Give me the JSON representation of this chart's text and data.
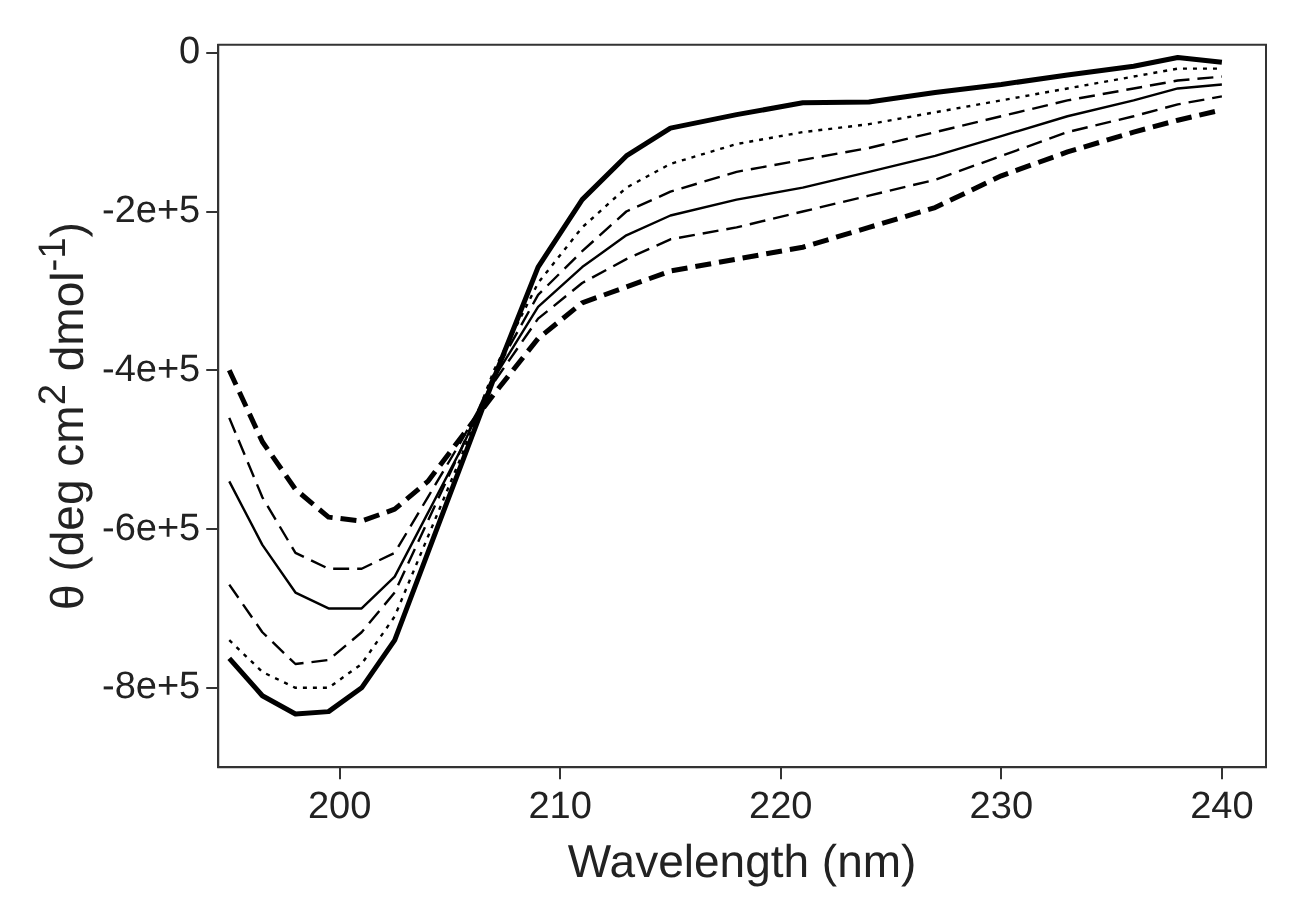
{
  "chart_data": {
    "type": "line",
    "xlabel": "Wavelength (nm)",
    "ylabel": "θ (deg cm$^{2}$ dmol$^{-1}$)",
    "x": [
      195,
      196.5,
      198,
      199.5,
      201,
      202.5,
      204,
      205.5,
      207,
      209,
      211,
      213,
      215,
      218,
      221,
      224,
      227,
      230,
      233,
      236,
      238,
      240
    ],
    "xlim": [
      194.5,
      242
    ],
    "xticks": [
      200,
      210,
      220,
      230,
      240
    ],
    "ylim": [
      -900000,
      10000
    ],
    "yticks": [
      {
        "value": -800000,
        "label": "-8e+5"
      },
      {
        "value": -600000,
        "label": "-6e+5"
      },
      {
        "value": -400000,
        "label": "-4e+5"
      },
      {
        "value": -200000,
        "label": "-2e+5"
      },
      0
    ],
    "marker": "none",
    "legend": false,
    "series": [
      {
        "color": "#000000",
        "line_style": "solid",
        "values": [
          -763000,
          -810000,
          -833000,
          -830000,
          -800000,
          -740000,
          -630000,
          -520000,
          -410000,
          -270000,
          -185000,
          -130000,
          -95000,
          -78000,
          -63000,
          -62000,
          -50000,
          -40000,
          -28000,
          -17000,
          -6000,
          -12000
        ]
      },
      {
        "color": "#000000",
        "line_style": "dotted",
        "values": [
          -740000,
          -780000,
          -800000,
          -800000,
          -770000,
          -710000,
          -610000,
          -510000,
          -400000,
          -290000,
          -220000,
          -170000,
          -140000,
          -115000,
          -100000,
          -90000,
          -75000,
          -60000,
          -45000,
          -30000,
          -20000,
          -20000
        ]
      },
      {
        "color": "#000000",
        "line_style": "dashed",
        "values": [
          -670000,
          -730000,
          -770000,
          -765000,
          -730000,
          -680000,
          -590000,
          -500000,
          -405000,
          -305000,
          -250000,
          -200000,
          -175000,
          -150000,
          -135000,
          -120000,
          -100000,
          -80000,
          -60000,
          -45000,
          -35000,
          -30000
        ]
      },
      {
        "color": "#000000",
        "line_style": "solid",
        "values": [
          -540000,
          -620000,
          -680000,
          -700000,
          -700000,
          -660000,
          -580000,
          -500000,
          -410000,
          -320000,
          -270000,
          -230000,
          -205000,
          -185000,
          -170000,
          -150000,
          -130000,
          -105000,
          -80000,
          -60000,
          -45000,
          -40000
        ]
      },
      {
        "color": "#000000",
        "line_style": "dashed",
        "values": [
          -460000,
          -560000,
          -630000,
          -650000,
          -650000,
          -630000,
          -560000,
          -490000,
          -415000,
          -335000,
          -290000,
          -260000,
          -235000,
          -220000,
          -200000,
          -180000,
          -160000,
          -130000,
          -100000,
          -80000,
          -65000,
          -55000
        ]
      },
      {
        "color": "#000000",
        "line_style": "dashed",
        "values": [
          -400000,
          -490000,
          -550000,
          -585000,
          -590000,
          -575000,
          -540000,
          -485000,
          -430000,
          -360000,
          -315000,
          -295000,
          -275000,
          -260000,
          -245000,
          -220000,
          -195000,
          -155000,
          -125000,
          -100000,
          -85000,
          -72000
        ]
      }
    ]
  }
}
